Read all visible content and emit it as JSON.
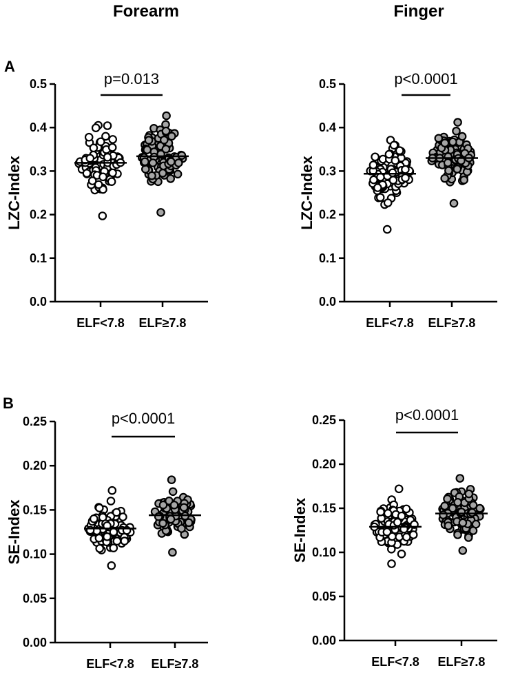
{
  "column_titles": [
    "Forearm",
    "Finger"
  ],
  "panel_letters": [
    "A",
    "B"
  ],
  "colors": {
    "group1_fill": "#ffffff",
    "group2_fill": "#a6a6a6",
    "outline": "#000000"
  },
  "chart_data": [
    {
      "type": "scatter",
      "panel": "A",
      "column": "Forearm",
      "ylabel": "LZC-Index",
      "ylim": [
        0,
        0.5
      ],
      "yticks": [
        "0.0",
        "0.1",
        "0.2",
        "0.3",
        "0.4",
        "0.5"
      ],
      "yticks_values": [
        0,
        0.1,
        0.2,
        0.3,
        0.4,
        0.5
      ],
      "categories": [
        "ELF<7.8",
        "ELF≥7.8"
      ],
      "pvalue": "p=0.013",
      "series": [
        {
          "mean": 0.319,
          "min": 0.197,
          "max": 0.405
        },
        {
          "mean": 0.334,
          "min": 0.205,
          "max": 0.427
        }
      ]
    },
    {
      "type": "scatter",
      "panel": "A",
      "column": "Finger",
      "ylabel": "LZC-Index",
      "ylim": [
        0,
        0.5
      ],
      "yticks": [
        "0.0",
        "0.1",
        "0.2",
        "0.3",
        "0.4",
        "0.5"
      ],
      "yticks_values": [
        0,
        0.1,
        0.2,
        0.3,
        0.4,
        0.5
      ],
      "categories": [
        "ELF<7.8",
        "ELF≥7.8"
      ],
      "pvalue": "p<0.0001",
      "series": [
        {
          "mean": 0.294,
          "min": 0.166,
          "max": 0.371
        },
        {
          "mean": 0.33,
          "min": 0.226,
          "max": 0.412
        }
      ]
    },
    {
      "type": "scatter",
      "panel": "B",
      "column": "Forearm",
      "ylabel": "SE-Index",
      "ylim": [
        0,
        0.25
      ],
      "yticks": [
        "0.00",
        "0.05",
        "0.10",
        "0.15",
        "0.20",
        "0.25"
      ],
      "yticks_values": [
        0,
        0.05,
        0.1,
        0.15,
        0.2,
        0.25
      ],
      "categories": [
        "ELF<7.8",
        "ELF≥7.8"
      ],
      "pvalue": "p<0.0001",
      "series": [
        {
          "mean": 0.129,
          "min": 0.087,
          "max": 0.172
        },
        {
          "mean": 0.144,
          "min": 0.102,
          "max": 0.184
        }
      ]
    },
    {
      "type": "scatter",
      "panel": "B",
      "column": "Finger",
      "ylabel": "SE-Index",
      "ylim": [
        0,
        0.25
      ],
      "yticks": [
        "0.00",
        "0.05",
        "0.10",
        "0.15",
        "0.20",
        "0.25"
      ],
      "yticks_values": [
        0,
        0.05,
        0.1,
        0.15,
        0.2,
        0.25
      ],
      "categories": [
        "ELF<7.8",
        "ELF≥7.8"
      ],
      "pvalue": "p<0.0001",
      "series": [
        {
          "mean": 0.129,
          "min": 0.087,
          "max": 0.172
        },
        {
          "mean": 0.144,
          "min": 0.102,
          "max": 0.184
        }
      ]
    }
  ]
}
